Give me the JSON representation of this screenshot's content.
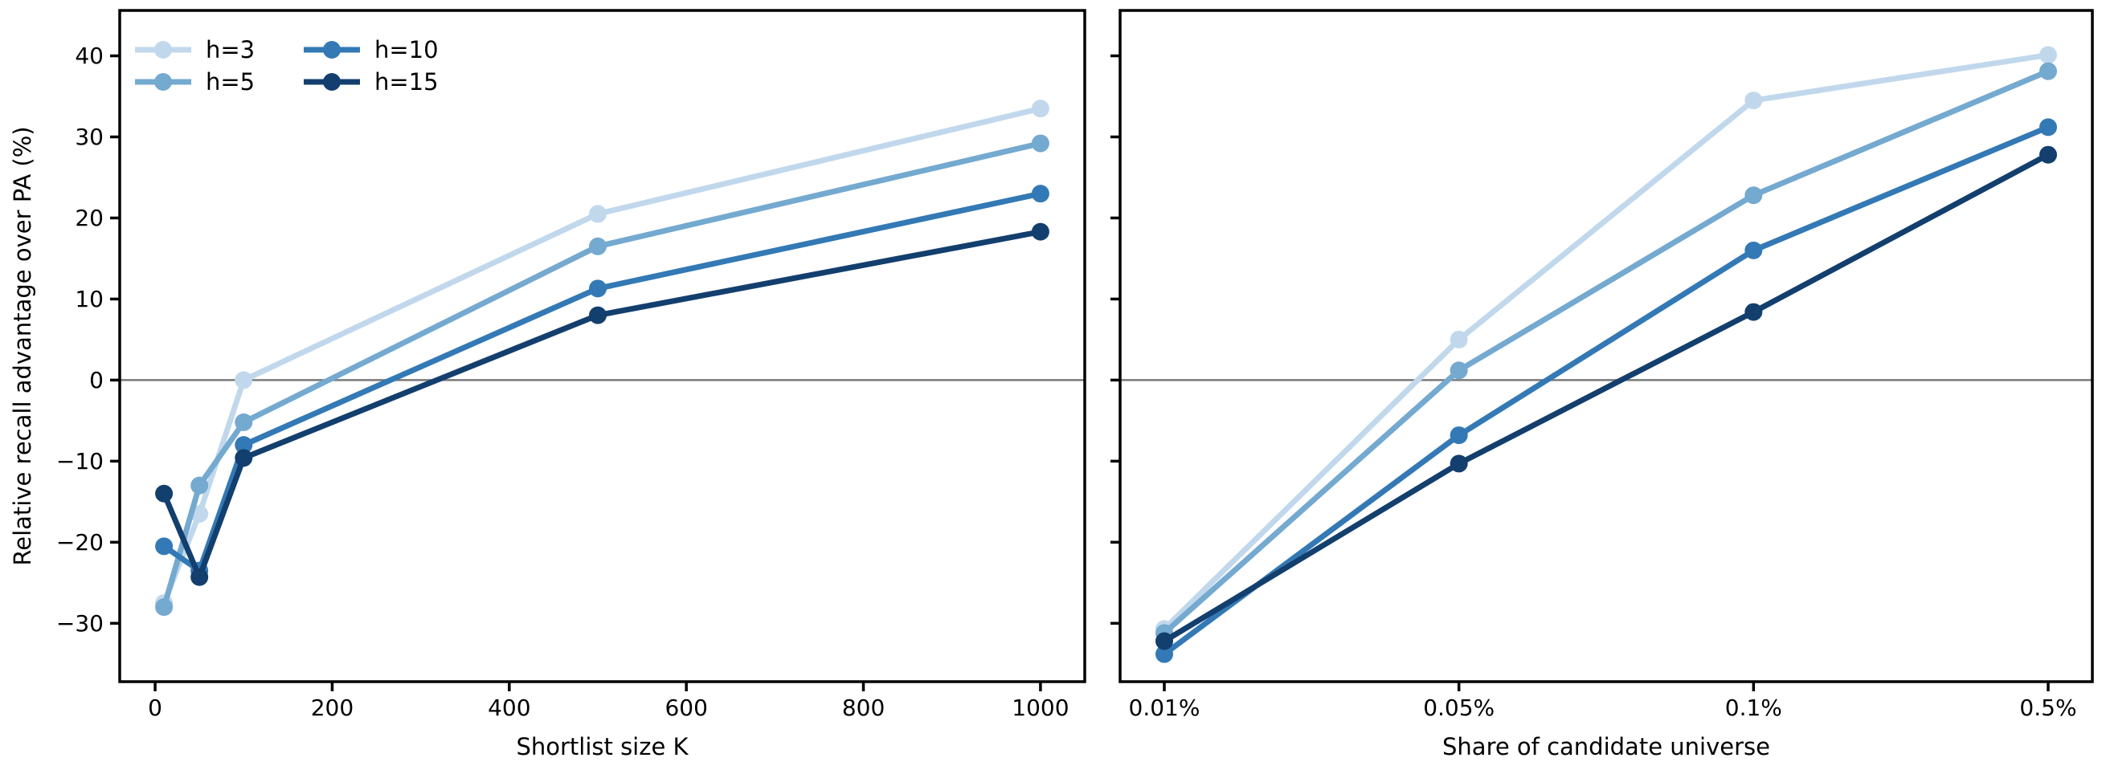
{
  "figure": {
    "background": "#ffffff",
    "text_color": "#000000",
    "spine_color": "#000000",
    "zero_line_color": "#7a7a7a"
  },
  "chart_data": [
    {
      "type": "line",
      "panel": "left",
      "title": "",
      "xlabel": "Shortlist size K",
      "ylabel": "Relative recall advantage over PA (%)",
      "x": [
        10,
        50,
        100,
        500,
        1000
      ],
      "xlim": [
        -40,
        1050
      ],
      "ylim": [
        -37.2,
        45.6
      ],
      "xticks": [
        {
          "v": 0,
          "label": "0"
        },
        {
          "v": 200,
          "label": "200"
        },
        {
          "v": 400,
          "label": "400"
        },
        {
          "v": 600,
          "label": "600"
        },
        {
          "v": 800,
          "label": "800"
        },
        {
          "v": 1000,
          "label": "1000"
        }
      ],
      "yticks": [
        {
          "v": -30,
          "label": "−30"
        },
        {
          "v": -20,
          "label": "−20"
        },
        {
          "v": -10,
          "label": "−10"
        },
        {
          "v": 0,
          "label": "0"
        },
        {
          "v": 10,
          "label": "10"
        },
        {
          "v": 20,
          "label": "20"
        },
        {
          "v": 30,
          "label": "30"
        },
        {
          "v": 40,
          "label": "40"
        }
      ],
      "show_ytick_labels": true,
      "grid": false,
      "zero_line": 0,
      "legend": {
        "position": "upper left",
        "ncol": 3,
        "visible": true
      },
      "series": [
        {
          "name": "h=3",
          "color": "#c1d8ec",
          "values": [
            -27.5,
            -16.5,
            0.0,
            20.5,
            33.5
          ]
        },
        {
          "name": "h=5",
          "color": "#74a9d0",
          "values": [
            -28.0,
            -13.0,
            -5.2,
            16.5,
            29.2
          ]
        },
        {
          "name": "h=10",
          "color": "#3379b5",
          "values": [
            -20.5,
            -23.5,
            -8.0,
            11.3,
            23.0
          ]
        },
        {
          "name": "h=15",
          "color": "#133f6e",
          "values": [
            -14.0,
            -24.3,
            -9.6,
            8.0,
            18.3
          ]
        }
      ]
    },
    {
      "type": "line",
      "panel": "right",
      "title": "",
      "xlabel": "Share of candidate universe",
      "ylabel": "",
      "categories": [
        "0.01%",
        "0.05%",
        "0.1%",
        "0.5%"
      ],
      "x": [
        0,
        1,
        2,
        3
      ],
      "xlim": [
        -0.15,
        3.15
      ],
      "ylim": [
        -37.2,
        45.6
      ],
      "xticks": [
        {
          "v": 0,
          "label": "0.01%"
        },
        {
          "v": 1,
          "label": "0.05%"
        },
        {
          "v": 2,
          "label": "0.1%"
        },
        {
          "v": 3,
          "label": "0.5%"
        }
      ],
      "yticks": [
        {
          "v": -30,
          "label": ""
        },
        {
          "v": -20,
          "label": ""
        },
        {
          "v": -10,
          "label": ""
        },
        {
          "v": 0,
          "label": ""
        },
        {
          "v": 10,
          "label": ""
        },
        {
          "v": 20,
          "label": ""
        },
        {
          "v": 30,
          "label": ""
        },
        {
          "v": 40,
          "label": ""
        }
      ],
      "show_ytick_labels": false,
      "grid": false,
      "zero_line": 0,
      "legend": {
        "visible": false
      },
      "series": [
        {
          "name": "h=3",
          "color": "#c1d8ec",
          "values": [
            -30.7,
            5.0,
            34.5,
            40.1
          ]
        },
        {
          "name": "h=5",
          "color": "#74a9d0",
          "values": [
            -31.2,
            1.2,
            22.8,
            38.1
          ]
        },
        {
          "name": "h=10",
          "color": "#3379b5",
          "values": [
            -33.8,
            -6.8,
            16.0,
            31.2
          ]
        },
        {
          "name": "h=15",
          "color": "#133f6e",
          "values": [
            -32.2,
            -10.3,
            8.4,
            27.8
          ]
        }
      ]
    }
  ]
}
